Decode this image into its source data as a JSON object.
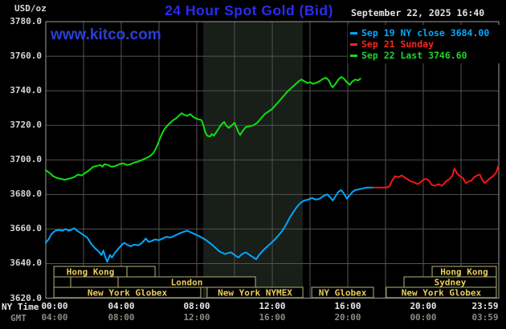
{
  "header": {
    "unit_label": "USD/oz",
    "title": "24 Hour Spot Gold (Bid)",
    "date": "September 22, 2025 16:40",
    "watermark": "www.kitco.com"
  },
  "legend": {
    "items": [
      {
        "label": "Sep 19 NY close 3684.00",
        "color": "#00a8ff"
      },
      {
        "label": "Sep 21 Sunday",
        "color": "#ff2222"
      },
      {
        "label": "Sep 22 Last 3746.60",
        "color": "#1ed42a"
      }
    ]
  },
  "axis_labels": {
    "ny_time": "NY Time",
    "gmt": "GMT"
  },
  "chart_data": {
    "type": "line",
    "title": "24 Hour Spot Gold (Bid)",
    "ylabel": "USD/oz",
    "ylim": [
      3620,
      3780
    ],
    "y_ticks": [
      "3780.0",
      "3760.0",
      "3740.0",
      "3720.0",
      "3700.0",
      "3680.0",
      "3660.0",
      "3640.0",
      "3620.0"
    ],
    "y_tick_values": [
      3780,
      3760,
      3740,
      3720,
      3700,
      3680,
      3660,
      3640,
      3620
    ],
    "x_range_hours": [
      0,
      24
    ],
    "x_gridline_every_hours": 2,
    "x_tick_hours": [
      0,
      4,
      8,
      12,
      16,
      20,
      23.983
    ],
    "x_ticks_ny_time": [
      "00:00",
      "04:00",
      "08:00",
      "12:00",
      "16:00",
      "20:00",
      "23:59"
    ],
    "x_ticks_gmt": [
      "04:00",
      "08:00",
      "12:00",
      "16:00",
      "20:00",
      "00:00",
      "03:59"
    ],
    "grid": true,
    "legend_position": "top-right",
    "shaded_band_hours": [
      8.34,
      13.62
    ],
    "series": [
      {
        "name": "Sep 19 NY close",
        "color": "#00a8ff",
        "close_value": 3684.0,
        "points": [
          [
            0,
            3652
          ],
          [
            0.15,
            3654
          ],
          [
            0.3,
            3657
          ],
          [
            0.5,
            3659
          ],
          [
            0.7,
            3659.5
          ],
          [
            0.9,
            3659
          ],
          [
            1.05,
            3660
          ],
          [
            1.2,
            3659
          ],
          [
            1.35,
            3659.5
          ],
          [
            1.5,
            3660.5
          ],
          [
            1.65,
            3659
          ],
          [
            1.8,
            3658
          ],
          [
            2.0,
            3656.5
          ],
          [
            2.2,
            3655
          ],
          [
            2.4,
            3651.5
          ],
          [
            2.6,
            3649
          ],
          [
            2.8,
            3647
          ],
          [
            2.95,
            3645
          ],
          [
            3.05,
            3647.5
          ],
          [
            3.15,
            3644
          ],
          [
            3.25,
            3641
          ],
          [
            3.4,
            3645
          ],
          [
            3.5,
            3643.5
          ],
          [
            3.65,
            3646
          ],
          [
            3.8,
            3648
          ],
          [
            4.0,
            3650.5
          ],
          [
            4.15,
            3652
          ],
          [
            4.3,
            3651
          ],
          [
            4.5,
            3650
          ],
          [
            4.7,
            3651
          ],
          [
            4.9,
            3650.5
          ],
          [
            5.1,
            3652
          ],
          [
            5.3,
            3654.5
          ],
          [
            5.45,
            3652.5
          ],
          [
            5.6,
            3653
          ],
          [
            5.8,
            3654
          ],
          [
            6.0,
            3653.5
          ],
          [
            6.2,
            3654.5
          ],
          [
            6.4,
            3655.5
          ],
          [
            6.6,
            3655
          ],
          [
            6.8,
            3656
          ],
          [
            7.0,
            3657
          ],
          [
            7.2,
            3658
          ],
          [
            7.5,
            3659
          ],
          [
            7.8,
            3657.5
          ],
          [
            8.0,
            3656.5
          ],
          [
            8.2,
            3655.5
          ],
          [
            8.5,
            3653.5
          ],
          [
            8.8,
            3651
          ],
          [
            9.0,
            3649
          ],
          [
            9.2,
            3647
          ],
          [
            9.5,
            3645.5
          ],
          [
            9.8,
            3646.5
          ],
          [
            10.0,
            3645
          ],
          [
            10.2,
            3643.5
          ],
          [
            10.4,
            3645.5
          ],
          [
            10.6,
            3646.5
          ],
          [
            10.8,
            3645
          ],
          [
            11.0,
            3643.5
          ],
          [
            11.15,
            3642.5
          ],
          [
            11.3,
            3645
          ],
          [
            11.5,
            3647.5
          ],
          [
            11.7,
            3649.5
          ],
          [
            11.9,
            3651.5
          ],
          [
            12.1,
            3653.5
          ],
          [
            12.3,
            3656
          ],
          [
            12.5,
            3658.5
          ],
          [
            12.65,
            3661
          ],
          [
            12.8,
            3664
          ],
          [
            12.95,
            3667
          ],
          [
            13.1,
            3669.5
          ],
          [
            13.25,
            3672
          ],
          [
            13.4,
            3674
          ],
          [
            13.55,
            3675.5
          ],
          [
            13.7,
            3676.5
          ],
          [
            13.9,
            3677
          ],
          [
            14.1,
            3678
          ],
          [
            14.3,
            3677
          ],
          [
            14.5,
            3677.5
          ],
          [
            14.7,
            3679
          ],
          [
            14.9,
            3680
          ],
          [
            15.05,
            3678.5
          ],
          [
            15.2,
            3676.5
          ],
          [
            15.35,
            3679
          ],
          [
            15.5,
            3681.5
          ],
          [
            15.65,
            3682.5
          ],
          [
            15.8,
            3680.5
          ],
          [
            15.95,
            3677.5
          ],
          [
            16.1,
            3679.5
          ],
          [
            16.25,
            3681.5
          ],
          [
            16.4,
            3682.5
          ],
          [
            16.6,
            3683
          ],
          [
            16.8,
            3683.5
          ],
          [
            17.0,
            3684
          ],
          [
            17.35,
            3684
          ]
        ]
      },
      {
        "name": "Sep 21 Sunday",
        "color": "#f21616",
        "points": [
          [
            17.35,
            3684
          ],
          [
            17.7,
            3684
          ],
          [
            18.0,
            3684
          ],
          [
            18.2,
            3684.5
          ],
          [
            18.35,
            3688
          ],
          [
            18.5,
            3690.5
          ],
          [
            18.7,
            3690
          ],
          [
            18.85,
            3691
          ],
          [
            19.0,
            3690
          ],
          [
            19.2,
            3688.5
          ],
          [
            19.35,
            3687.5
          ],
          [
            19.5,
            3687
          ],
          [
            19.7,
            3686
          ],
          [
            19.85,
            3687
          ],
          [
            20.0,
            3688.5
          ],
          [
            20.15,
            3689
          ],
          [
            20.3,
            3688
          ],
          [
            20.45,
            3685.5
          ],
          [
            20.6,
            3685
          ],
          [
            20.8,
            3686
          ],
          [
            21.0,
            3685
          ],
          [
            21.2,
            3687.5
          ],
          [
            21.4,
            3689
          ],
          [
            21.55,
            3691
          ],
          [
            21.65,
            3695
          ],
          [
            21.8,
            3692
          ],
          [
            21.95,
            3690.5
          ],
          [
            22.1,
            3689.5
          ],
          [
            22.25,
            3686.5
          ],
          [
            22.4,
            3687.5
          ],
          [
            22.55,
            3688
          ],
          [
            22.7,
            3690
          ],
          [
            22.85,
            3691
          ],
          [
            23.0,
            3691.5
          ],
          [
            23.1,
            3689
          ],
          [
            23.25,
            3686.5
          ],
          [
            23.4,
            3688
          ],
          [
            23.55,
            3689.5
          ],
          [
            23.7,
            3690.5
          ],
          [
            23.85,
            3692.5
          ],
          [
            23.98,
            3696.5
          ]
        ]
      },
      {
        "name": "Sep 22 Last",
        "color": "#0ee00e",
        "last_value": 3746.6,
        "points": [
          [
            0,
            3694
          ],
          [
            0.2,
            3692.5
          ],
          [
            0.4,
            3690.5
          ],
          [
            0.6,
            3689.5
          ],
          [
            0.8,
            3689
          ],
          [
            1.0,
            3688.5
          ],
          [
            1.2,
            3689
          ],
          [
            1.5,
            3690
          ],
          [
            1.7,
            3691.5
          ],
          [
            1.9,
            3691
          ],
          [
            2.1,
            3692.5
          ],
          [
            2.3,
            3694
          ],
          [
            2.5,
            3696
          ],
          [
            2.7,
            3696.5
          ],
          [
            2.9,
            3697
          ],
          [
            3.0,
            3696
          ],
          [
            3.1,
            3697.5
          ],
          [
            3.3,
            3697
          ],
          [
            3.5,
            3696
          ],
          [
            3.7,
            3696.5
          ],
          [
            3.9,
            3697.5
          ],
          [
            4.1,
            3698
          ],
          [
            4.3,
            3697
          ],
          [
            4.5,
            3697.5
          ],
          [
            4.7,
            3698.5
          ],
          [
            4.9,
            3699
          ],
          [
            5.1,
            3700
          ],
          [
            5.3,
            3701
          ],
          [
            5.5,
            3702
          ],
          [
            5.7,
            3704
          ],
          [
            5.85,
            3707
          ],
          [
            6.0,
            3711
          ],
          [
            6.15,
            3715
          ],
          [
            6.3,
            3718
          ],
          [
            6.45,
            3720
          ],
          [
            6.6,
            3721.5
          ],
          [
            6.75,
            3723
          ],
          [
            6.9,
            3724
          ],
          [
            7.0,
            3725
          ],
          [
            7.1,
            3726
          ],
          [
            7.2,
            3727
          ],
          [
            7.35,
            3726
          ],
          [
            7.5,
            3725.5
          ],
          [
            7.65,
            3726.5
          ],
          [
            7.8,
            3725
          ],
          [
            7.95,
            3724
          ],
          [
            8.1,
            3723.5
          ],
          [
            8.25,
            3723
          ],
          [
            8.35,
            3720
          ],
          [
            8.45,
            3716
          ],
          [
            8.55,
            3714
          ],
          [
            8.7,
            3713.5
          ],
          [
            8.8,
            3715
          ],
          [
            8.9,
            3714
          ],
          [
            9.0,
            3715.5
          ],
          [
            9.15,
            3718
          ],
          [
            9.3,
            3720.5
          ],
          [
            9.45,
            3722
          ],
          [
            9.55,
            3720
          ],
          [
            9.7,
            3718.5
          ],
          [
            9.85,
            3720
          ],
          [
            10.0,
            3721.5
          ],
          [
            10.1,
            3719
          ],
          [
            10.2,
            3716
          ],
          [
            10.3,
            3714.5
          ],
          [
            10.45,
            3717
          ],
          [
            10.6,
            3719
          ],
          [
            10.8,
            3719.5
          ],
          [
            11.0,
            3720
          ],
          [
            11.2,
            3721.5
          ],
          [
            11.4,
            3724
          ],
          [
            11.6,
            3726.5
          ],
          [
            11.8,
            3728
          ],
          [
            12.0,
            3729.5
          ],
          [
            12.2,
            3732
          ],
          [
            12.4,
            3734.5
          ],
          [
            12.6,
            3737
          ],
          [
            12.8,
            3739.5
          ],
          [
            13.0,
            3741.5
          ],
          [
            13.2,
            3743.5
          ],
          [
            13.4,
            3745.5
          ],
          [
            13.55,
            3746.5
          ],
          [
            13.7,
            3745.5
          ],
          [
            13.85,
            3744.5
          ],
          [
            14.0,
            3745
          ],
          [
            14.15,
            3744
          ],
          [
            14.3,
            3744.5
          ],
          [
            14.5,
            3745.5
          ],
          [
            14.7,
            3747
          ],
          [
            14.85,
            3747.5
          ],
          [
            15.0,
            3746
          ],
          [
            15.1,
            3743.5
          ],
          [
            15.2,
            3742
          ],
          [
            15.35,
            3744
          ],
          [
            15.5,
            3746.5
          ],
          [
            15.65,
            3748
          ],
          [
            15.8,
            3747
          ],
          [
            15.95,
            3745
          ],
          [
            16.1,
            3743.5
          ],
          [
            16.25,
            3745.5
          ],
          [
            16.4,
            3746.5
          ],
          [
            16.55,
            3746
          ],
          [
            16.67,
            3747
          ]
        ]
      }
    ],
    "market_sessions": {
      "rows": [
        [
          {
            "label": "Hong Kong",
            "hours": [
              0.43,
              4.3
            ]
          },
          {
            "label": "",
            "hours": [
              4.3,
              5.79
            ]
          },
          {
            "label": "Hong Kong",
            "hours": [
              20.47,
              23.87
            ]
          }
        ],
        [
          {
            "label": "",
            "hours": [
              0.43,
              1.32
            ]
          },
          {
            "label": "",
            "hours": [
              1.32,
              3.83
            ]
          },
          {
            "label": "London",
            "hours": [
              3.83,
              11.11
            ]
          },
          {
            "label": "Sydney",
            "hours": [
              18.98,
              23.87
            ]
          }
        ],
        [
          {
            "label": "New York Globex",
            "hours": [
              0.43,
              8.21
            ]
          },
          {
            "label": "New York NYMEX",
            "hours": [
              8.55,
              13.62
            ]
          },
          {
            "label": "NY Globex",
            "hours": [
              14.09,
              17.36
            ]
          },
          {
            "label": "New York Globex",
            "hours": [
              18.04,
              23.87
            ]
          }
        ]
      ]
    },
    "colors": {
      "background": "#000000",
      "plot_border": "#9c9c9c",
      "gridline": "#535353",
      "shaded_band": "#181e18",
      "session_box_border": "#b5b577",
      "session_label": "#e9cd5a"
    }
  }
}
